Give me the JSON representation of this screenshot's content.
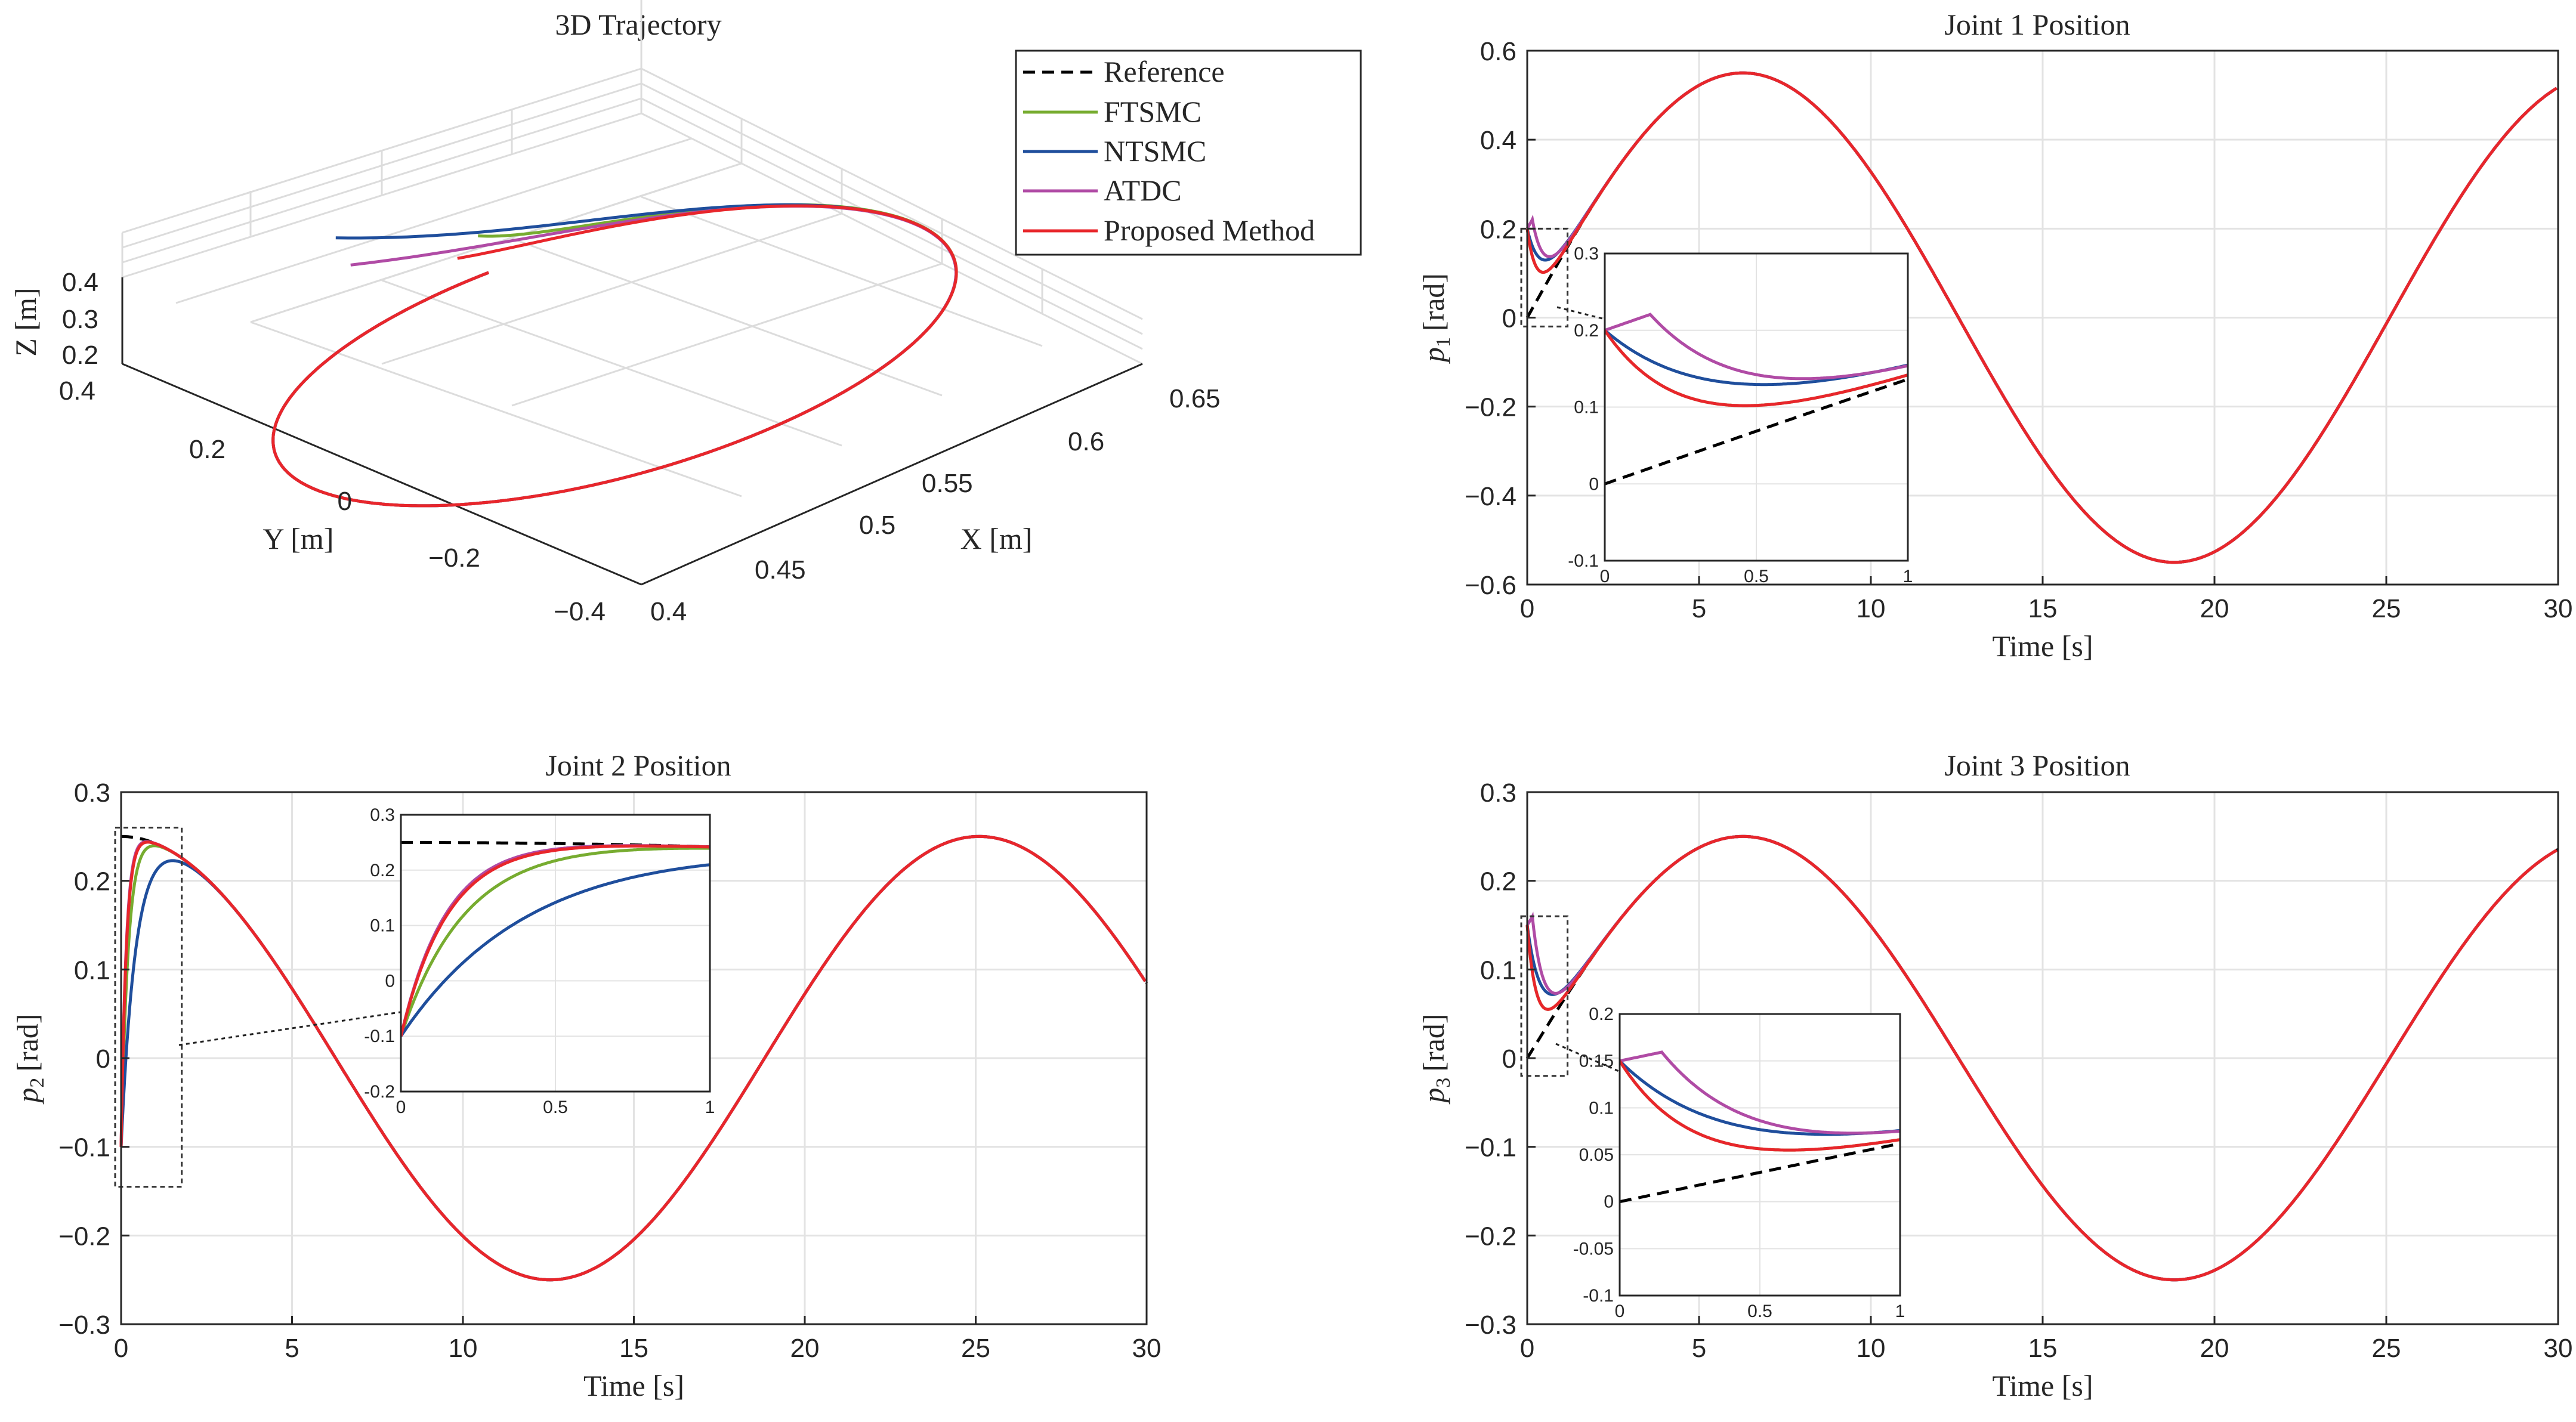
{
  "colors": {
    "Reference": "#000000",
    "FTSMC": "#77AC30",
    "NTSMC": "#1F4E9C",
    "ATDC": "#B04BA5",
    "Proposed Method": "#E8262B"
  },
  "legend": [
    "Reference",
    "FTSMC",
    "NTSMC",
    "ATDC",
    "Proposed Method"
  ],
  "chart_data": [
    {
      "id": "traj3d",
      "type": "line",
      "title": "3D Trajectory",
      "xlabel": "X [m]",
      "ylabel": "Y [m]",
      "zlabel": "Z [m]",
      "xticks": [
        "0.4",
        "0.45",
        "0.5",
        "0.55",
        "0.6",
        "0.65"
      ],
      "yticks": [
        "−0.4",
        "−0.2",
        "0",
        "0.2",
        "0.4"
      ],
      "zticks": [
        "0.2",
        "0.3",
        "0.4"
      ],
      "xlim": [
        0.4,
        0.65
      ],
      "ylim": [
        -0.4,
        0.4
      ],
      "zlim": [
        0.2,
        0.4
      ],
      "grid": true,
      "legend_position": "top-right",
      "series": [
        {
          "name": "Reference",
          "description": "circular path x = 0.5 + 0.15 sin(t), y = 0.25 cos(t), z = 0.3"
        },
        {
          "name": "FTSMC"
        },
        {
          "name": "NTSMC"
        },
        {
          "name": "ATDC"
        },
        {
          "name": "Proposed Method"
        }
      ]
    },
    {
      "id": "joint1",
      "type": "line",
      "title": "Joint 1 Position",
      "xlabel": "Time [s]",
      "ylabel": "p₁ [rad]",
      "ylabel_var": "p",
      "ylabel_sub": "1",
      "ylabel_unit": "[rad]",
      "xlim": [
        0,
        30
      ],
      "ylim": [
        -0.6,
        0.6
      ],
      "xticks": [
        0,
        5,
        10,
        15,
        20,
        25,
        30
      ],
      "yticks": [
        -0.6,
        -0.4,
        -0.2,
        0,
        0.2,
        0.4,
        0.6
      ],
      "grid": true,
      "reference": {
        "amplitude": 0.55,
        "period": 25.1,
        "offset": 0
      },
      "series": [
        {
          "name": "FTSMC",
          "initial_value": 0.2,
          "dip": 0.06
        },
        {
          "name": "NTSMC",
          "initial_value": 0.2,
          "dip": 0.1
        },
        {
          "name": "ATDC",
          "initial_value": 0.2,
          "dip": 0.07
        },
        {
          "name": "Proposed Method",
          "initial_value": 0.2,
          "dip": 0.06
        }
      ],
      "inset": {
        "xlim": [
          0,
          1
        ],
        "ylim": [
          -0.1,
          0.3
        ],
        "xticks": [
          0,
          0.5,
          1
        ],
        "xtick_labels": [
          "0",
          "0.5",
          "1"
        ],
        "yticks": [
          -0.1,
          0,
          0.1,
          0.2,
          0.3
        ],
        "ytick_labels": [
          "-0.1",
          "0",
          "0.1",
          "0.2",
          "0.3"
        ]
      }
    },
    {
      "id": "joint2",
      "type": "line",
      "title": "Joint 2 Position",
      "xlabel": "Time [s]",
      "ylabel": "p₂ [rad]",
      "ylabel_var": "p",
      "ylabel_sub": "2",
      "ylabel_unit": "[rad]",
      "xlim": [
        0,
        30
      ],
      "ylim": [
        -0.3,
        0.3
      ],
      "xticks": [
        0,
        5,
        10,
        15,
        20,
        25,
        30
      ],
      "yticks": [
        -0.3,
        -0.2,
        -0.1,
        0,
        0.1,
        0.2,
        0.3
      ],
      "grid": true,
      "reference": {
        "amplitude": 0.25,
        "period": 25.1,
        "cosine": true
      },
      "series": [
        {
          "name": "FTSMC",
          "initial_value": -0.1,
          "peak": 0.245
        },
        {
          "name": "NTSMC",
          "initial_value": -0.1,
          "peak": 0.235
        },
        {
          "name": "ATDC",
          "initial_value": -0.1,
          "peak": 0.25
        },
        {
          "name": "Proposed Method",
          "initial_value": -0.1,
          "peak": 0.25
        }
      ],
      "inset": {
        "xlim": [
          0,
          1
        ],
        "ylim": [
          -0.2,
          0.3
        ],
        "xticks": [
          0,
          0.5,
          1
        ],
        "xtick_labels": [
          "0",
          "0.5",
          "1"
        ],
        "yticks": [
          -0.2,
          -0.1,
          0,
          0.1,
          0.2,
          0.3
        ],
        "ytick_labels": [
          "-0.2",
          "-0.1",
          "0",
          "0.1",
          "0.2",
          "0.3"
        ]
      }
    },
    {
      "id": "joint3",
      "type": "line",
      "title": "Joint 3 Position",
      "xlabel": "Time [s]",
      "ylabel": "p₃ [rad]",
      "ylabel_var": "p",
      "ylabel_sub": "3",
      "ylabel_unit": "[rad]",
      "xlim": [
        0,
        30
      ],
      "ylim": [
        -0.3,
        0.3
      ],
      "xticks": [
        0,
        5,
        10,
        15,
        20,
        25,
        30
      ],
      "yticks": [
        -0.3,
        -0.2,
        -0.1,
        0,
        0.1,
        0.2,
        0.3
      ],
      "grid": true,
      "reference": {
        "amplitude": 0.25,
        "period": 25.1,
        "offset": 0
      },
      "series": [
        {
          "name": "FTSMC",
          "initial_value": 0.15,
          "dip": 0.035
        },
        {
          "name": "NTSMC",
          "initial_value": 0.15,
          "dip": 0.045
        },
        {
          "name": "ATDC",
          "initial_value": 0.15,
          "dip": 0.03
        },
        {
          "name": "Proposed Method",
          "initial_value": 0.15,
          "dip": 0.035
        }
      ],
      "inset": {
        "xlim": [
          0,
          1
        ],
        "ylim": [
          -0.1,
          0.2
        ],
        "xticks": [
          0,
          0.5,
          1
        ],
        "xtick_labels": [
          "0",
          "0.5",
          "1"
        ],
        "yticks": [
          -0.1,
          -0.05,
          0,
          0.05,
          0.1,
          0.15,
          0.2
        ],
        "ytick_labels": [
          "-0.1",
          "-0.05",
          "0",
          "0.05",
          "0.1",
          "0.15",
          "0.2"
        ]
      }
    }
  ]
}
